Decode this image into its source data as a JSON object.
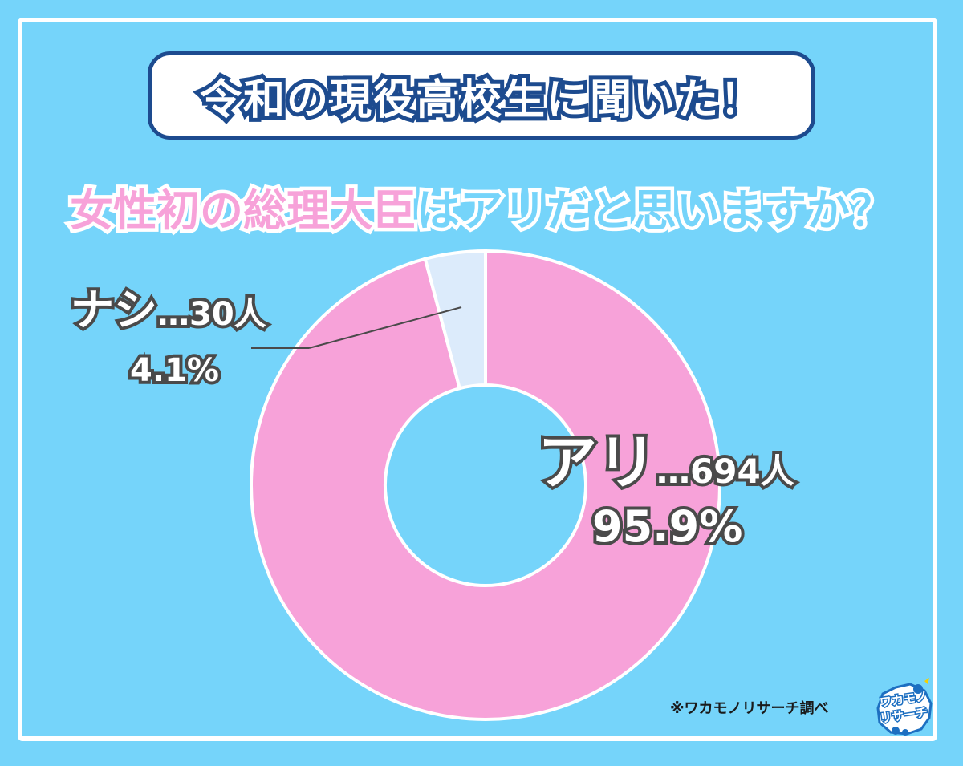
{
  "header": {
    "title": "令和の現役高校生に聞いた！"
  },
  "question": {
    "highlight": "女性初の総理大臣",
    "rest": "はアリだと思いますか？"
  },
  "colors": {
    "background": "#75d4fa",
    "ari": "#f7a2d9",
    "nashi": "#dcebfb",
    "title_border": "#1d4b8f"
  },
  "labels": {
    "nashi_name": "ナシ",
    "nashi_count": "…30人",
    "nashi_pct": "4.1%",
    "ari_name": "アリ",
    "ari_count": "…694人",
    "ari_pct": "95.9%"
  },
  "chart_data": {
    "type": "pie",
    "donut": true,
    "categories": [
      "アリ",
      "ナシ"
    ],
    "values": [
      694,
      30
    ],
    "percentages": [
      95.9,
      4.1
    ],
    "units": "人"
  },
  "source": "※ワカモノリサーチ調べ",
  "logo": {
    "line1": "ワカモノ",
    "line2": "リサーチ"
  }
}
